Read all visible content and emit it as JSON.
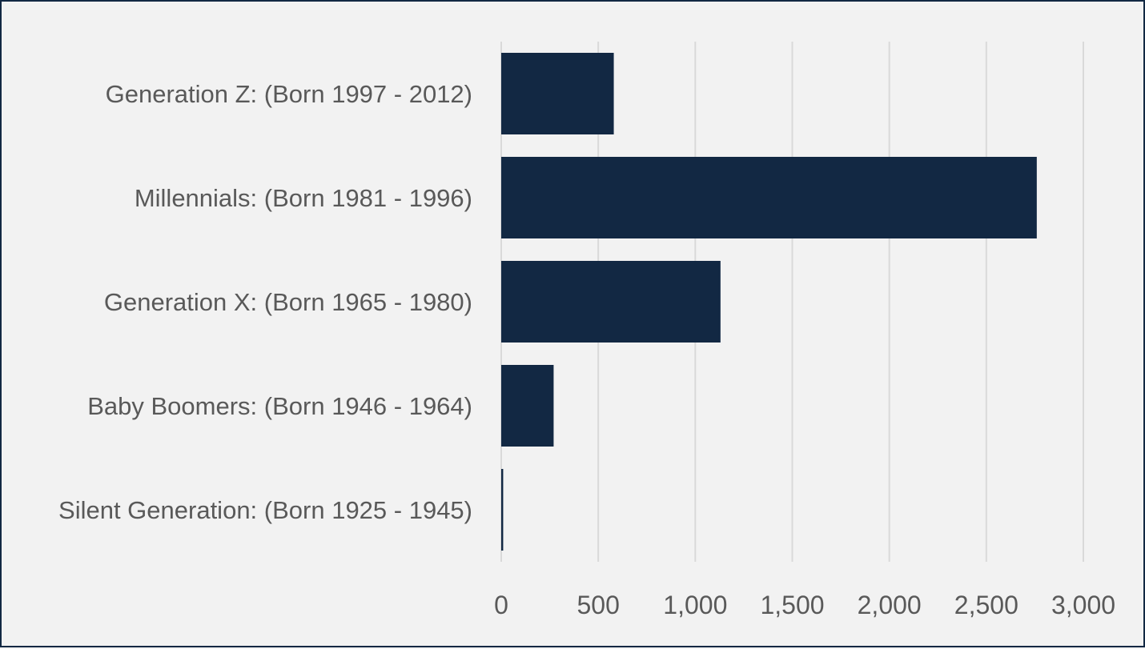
{
  "chart_data": {
    "type": "bar",
    "orientation": "horizontal",
    "title": "",
    "xlabel": "",
    "ylabel": "",
    "categories": [
      "Generation Z: (Born 1997 - 2012)",
      "Millennials: (Born 1981 - 1996)",
      "Generation X: (Born 1965 - 1980)",
      "Baby Boomers: (Born 1946 - 1964)",
      "Silent Generation: (Born 1925 - 1945)"
    ],
    "values": [
      580,
      2760,
      1130,
      270,
      10
    ],
    "xlim": [
      0,
      3000
    ],
    "xticks": [
      0,
      500,
      1000,
      1500,
      2000,
      2500,
      3000
    ],
    "xtick_labels": [
      "0",
      "500",
      "1,000",
      "1,500",
      "2,000",
      "2,500",
      "3,000"
    ],
    "grid": "vertical",
    "legend": "none",
    "bar_color": "#122843",
    "border_color": "#122843",
    "background_color": "#f2f2f2"
  }
}
